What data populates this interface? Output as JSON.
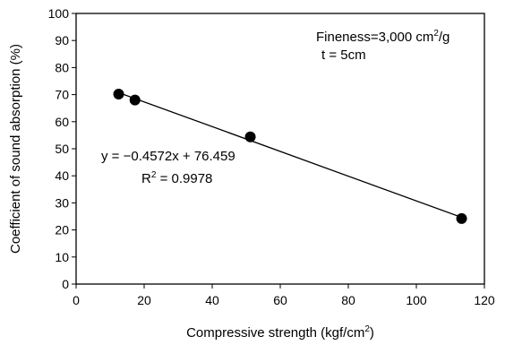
{
  "chart_data": {
    "type": "scatter",
    "title": "",
    "xlabel": "Compressive strength (kgf/cm",
    "xlabel_sup": "2",
    "xlabel_end": ")",
    "ylabel": "Coefficient of sound absorption (%)",
    "xlim": [
      0,
      120
    ],
    "ylim": [
      0,
      100
    ],
    "x_ticks": [
      0,
      20,
      40,
      60,
      80,
      100,
      120
    ],
    "y_ticks": [
      0,
      10,
      20,
      30,
      40,
      50,
      60,
      70,
      80,
      90,
      100
    ],
    "grid": false,
    "legend": "none",
    "series": [
      {
        "points": [
          {
            "x": 12.5,
            "y": 70.2
          },
          {
            "x": 17.3,
            "y": 68.0
          },
          {
            "x": 51.2,
            "y": 54.4
          },
          {
            "x": 113.3,
            "y": 24.2
          }
        ],
        "color": "#000000",
        "marker": "circle"
      }
    ],
    "trendline": {
      "slope": -0.4572,
      "intercept": 76.459,
      "x_range": [
        12.5,
        113.3
      ],
      "equation": "y = −0.4572x + 76.459",
      "r2_prefix": "R",
      "r2_sup": "2",
      "r2_suffix": " = 0.9978"
    },
    "annotations": {
      "fineness_prefix": "Fineness=3,000 cm",
      "fineness_sup": "2",
      "fineness_suffix": "/g",
      "thickness": "t = 5cm"
    }
  }
}
